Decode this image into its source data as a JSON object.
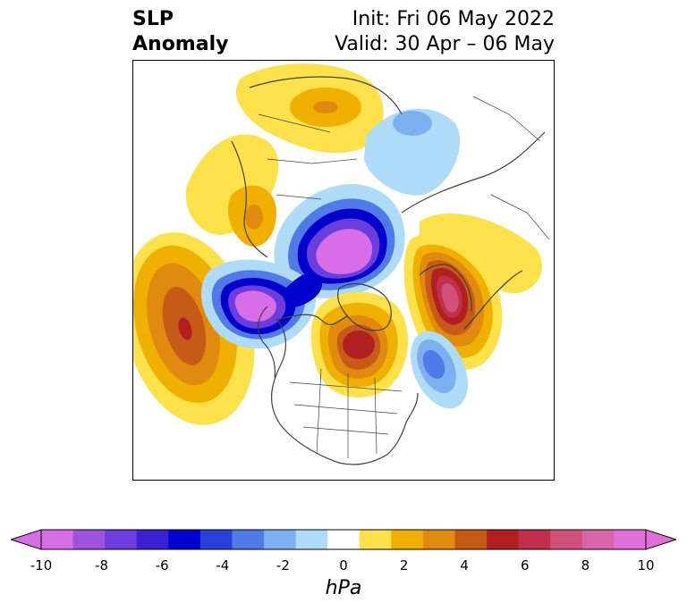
{
  "title": {
    "left_line1": "SLP",
    "left_line2": "Anomaly",
    "right_line1": "Init: Fri 06 May 2022",
    "right_line2": "Valid: 30 Apr – 06 May"
  },
  "colorbar": {
    "units": "hPa",
    "ticks": [
      "-10",
      "-8",
      "-6",
      "-4",
      "-2",
      "0",
      "2",
      "4",
      "6",
      "8",
      "10"
    ],
    "levels": [
      -10,
      -9,
      -8,
      -7,
      -6,
      -5,
      -4,
      -3,
      -2,
      -1,
      1,
      2,
      3,
      4,
      5,
      6,
      7,
      8,
      9,
      10
    ],
    "colors": [
      "#d76ee8",
      "#9e52de",
      "#6a3ddc",
      "#3a22d2",
      "#0000cc",
      "#2a40dc",
      "#4f7ae8",
      "#7db0f0",
      "#aedcf8",
      "#ffffff",
      "#fde14a",
      "#f0b000",
      "#e08a10",
      "#c85a18",
      "#b02020",
      "#c0304c",
      "#d0507a",
      "#d865a8",
      "#e070d8"
    ],
    "extend": "both"
  },
  "map": {
    "projection": "north-polar-stereographic",
    "anomaly_centers": [
      {
        "name": "north-pacific-high",
        "value": 7
      },
      {
        "name": "alaska-low",
        "value": -10
      },
      {
        "name": "arctic-low",
        "value": -10
      },
      {
        "name": "hudson-bay-high",
        "value": 7
      },
      {
        "name": "western-europe-high",
        "value": 8
      },
      {
        "name": "north-atlantic-low",
        "value": -4
      },
      {
        "name": "siberia-high",
        "value": 3
      },
      {
        "name": "ural-low",
        "value": -2
      }
    ]
  }
}
